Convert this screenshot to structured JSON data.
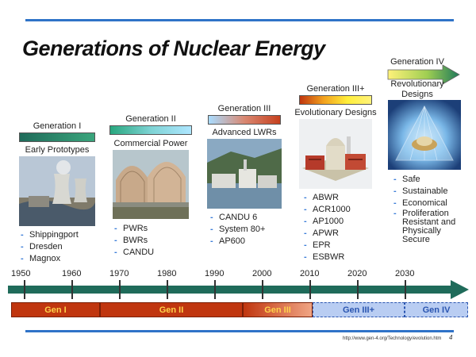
{
  "title": "Generations of Nuclear Energy",
  "generations": [
    {
      "label": "Generation I",
      "subtitle": "Early Prototypes",
      "items": [
        "Shippingport",
        "Dresden",
        "Magnox"
      ]
    },
    {
      "label": "Generation II",
      "subtitle": "Commercial Power",
      "items": [
        "PWRs",
        "BWRs",
        "CANDU"
      ]
    },
    {
      "label": "Generation III",
      "subtitle": "Advanced LWRs",
      "items": [
        "CANDU 6",
        "System 80+",
        "AP600"
      ]
    },
    {
      "label": "Generation III+",
      "subtitle": "Evolutionary Designs",
      "items": [
        "ABWR",
        "ACR1000",
        "AP1000",
        "APWR",
        "EPR",
        "ESBWR"
      ]
    },
    {
      "label": "Generation IV",
      "subtitle": "Revolutionary Designs",
      "items": [
        "Safe",
        "Sustainable",
        "Economical",
        "Proliferation Resistant and Physically Secure"
      ]
    }
  ],
  "timeline": {
    "years": [
      "1950",
      "1960",
      "1970",
      "1980",
      "1990",
      "2000",
      "2010",
      "2020",
      "2030"
    ],
    "segments": [
      "Gen I",
      "Gen II",
      "Gen III",
      "Gen III+",
      "Gen IV"
    ]
  },
  "footer": {
    "url": "http://www.gen-4.org/Technology/evolution.htm",
    "page": "4"
  },
  "colors": {
    "accent": "#2f73c8",
    "timeline_arrow": "#1f6b5a",
    "gen_red": "#c0360f",
    "gen_iii_plus": "#b9cdf2"
  }
}
